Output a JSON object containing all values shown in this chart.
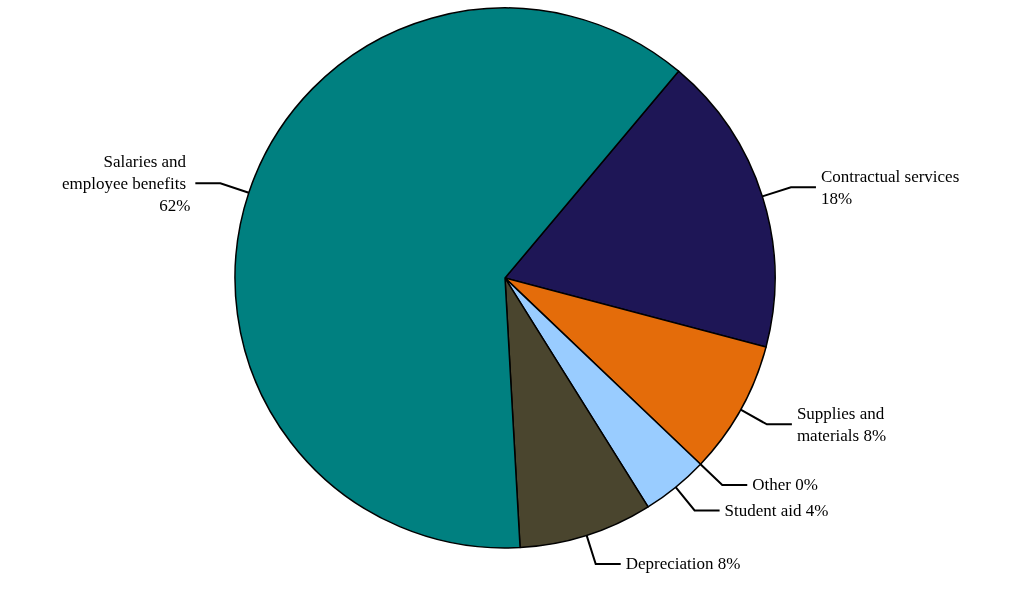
{
  "chart_data": {
    "type": "pie",
    "categories": [
      "Contractual services",
      "Supplies and materials",
      "Other",
      "Student aid",
      "Depreciation",
      "Salaries and employee benefits"
    ],
    "values": [
      18,
      8,
      0,
      4,
      8,
      62
    ],
    "value_labels": [
      "18%",
      "8%",
      "0%",
      "4%",
      "8%",
      "62%"
    ],
    "colors": [
      "#1e1656",
      "#e46c0a",
      "#ffffcc",
      "#99ccff",
      "#4a452e",
      "#008080"
    ]
  }
}
